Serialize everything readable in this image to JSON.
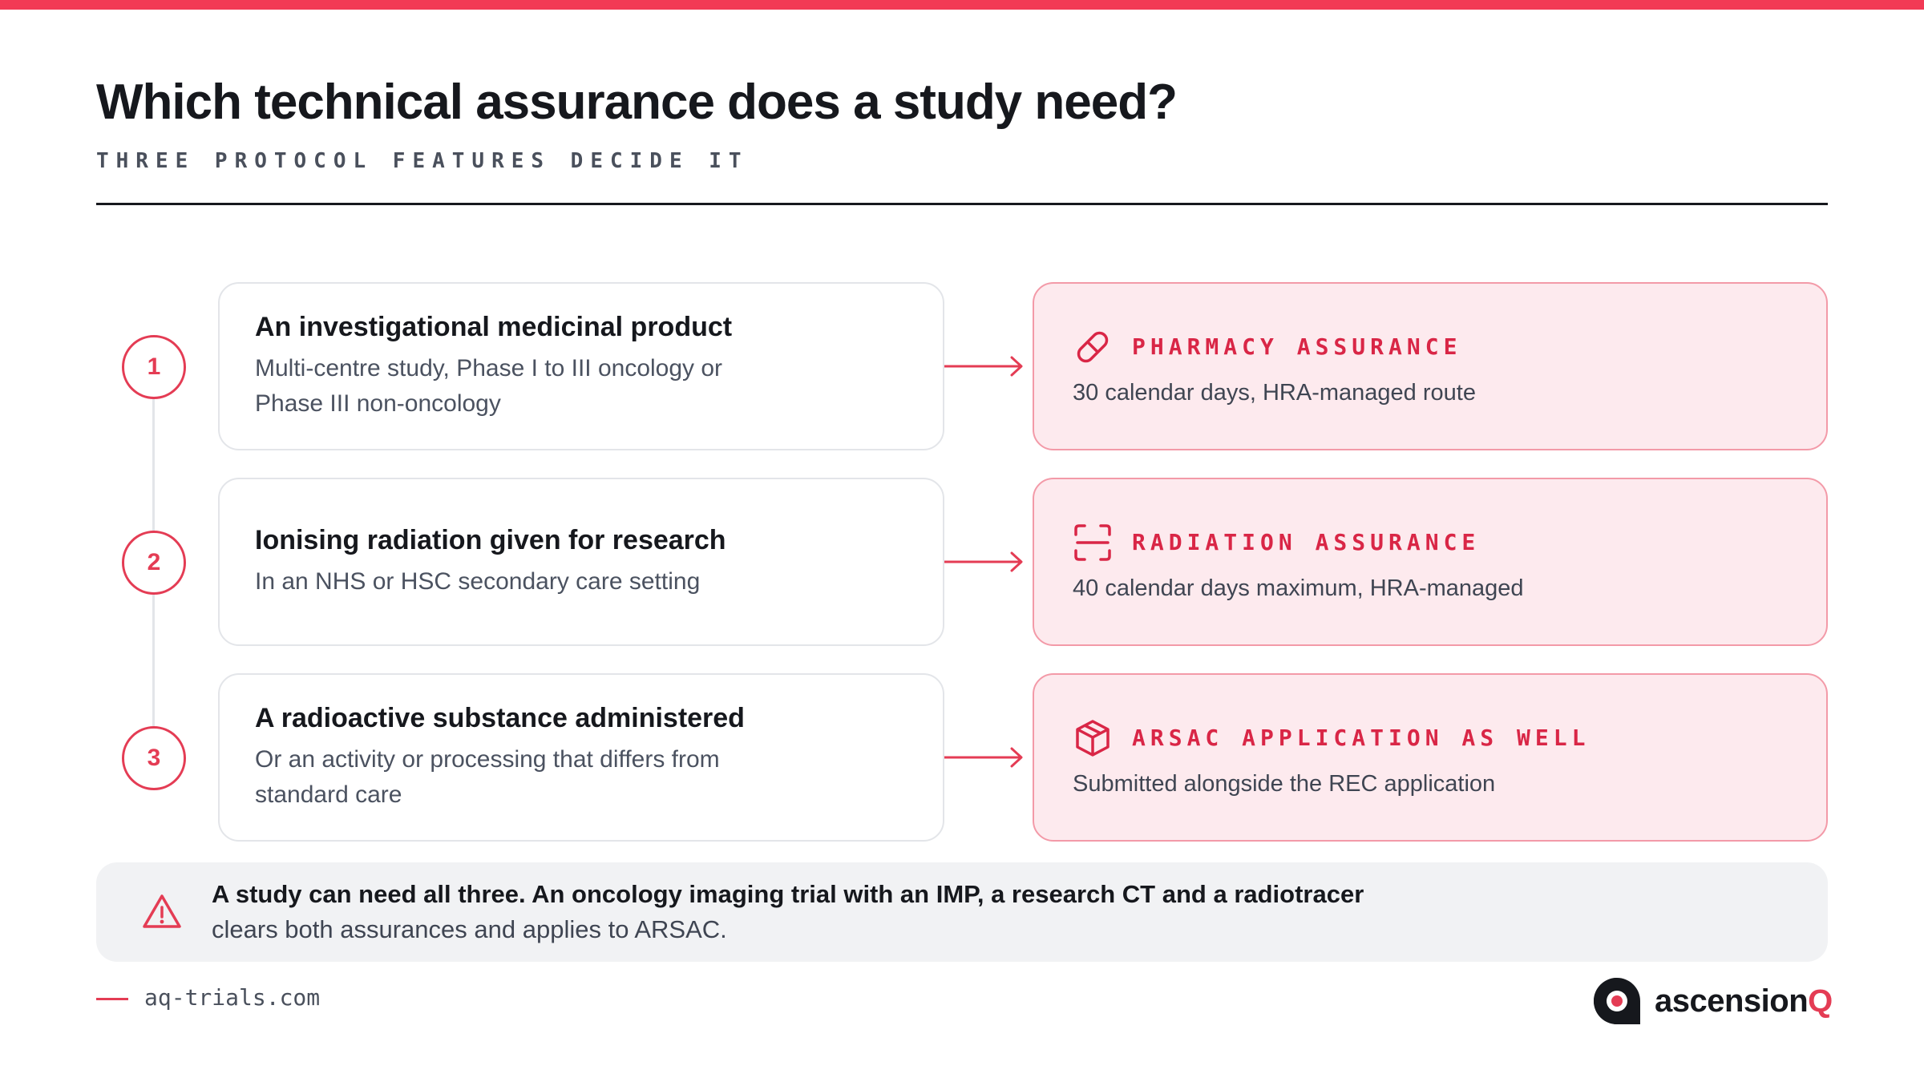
{
  "header": {
    "title": "Which technical assurance does a study need?",
    "subtitle": "THREE PROTOCOL FEATURES DECIDE IT"
  },
  "rows": [
    {
      "number": "1",
      "question_title": "An investigational medicinal product",
      "question_desc": "Multi-centre study, Phase I to III oncology or Phase III non-oncology",
      "answer_icon": "pill-icon",
      "answer_title": "PHARMACY ASSURANCE",
      "answer_desc": "30 calendar days, HRA-managed route"
    },
    {
      "number": "2",
      "question_title": "Ionising radiation given for research",
      "question_desc": "In an NHS or HSC secondary care setting",
      "answer_icon": "scan-icon",
      "answer_title": "RADIATION ASSURANCE",
      "answer_desc": "40 calendar days maximum, HRA-managed"
    },
    {
      "number": "3",
      "question_title": "A radioactive substance administered",
      "question_desc": "Or an activity or processing that differs from standard care",
      "answer_icon": "package-icon",
      "answer_title": "ARSAC APPLICATION AS WELL",
      "answer_desc": "Submitted alongside the REC application"
    }
  ],
  "note": {
    "icon": "warning-icon",
    "bold": "A study can need all three. An oncology imaging trial with an IMP, a research CT and a radiotracer",
    "text": "clears both assurances and applies to ARSAC."
  },
  "footer": {
    "url": "aq-trials.com",
    "brand_prefix": "ascension",
    "brand_suffix": "Q"
  },
  "colors": {
    "accent": "#e43c54",
    "answer_bg": "#fdeaee",
    "answer_border": "#f39aa8",
    "note_bg": "#f1f2f4",
    "text": "#16181d"
  }
}
